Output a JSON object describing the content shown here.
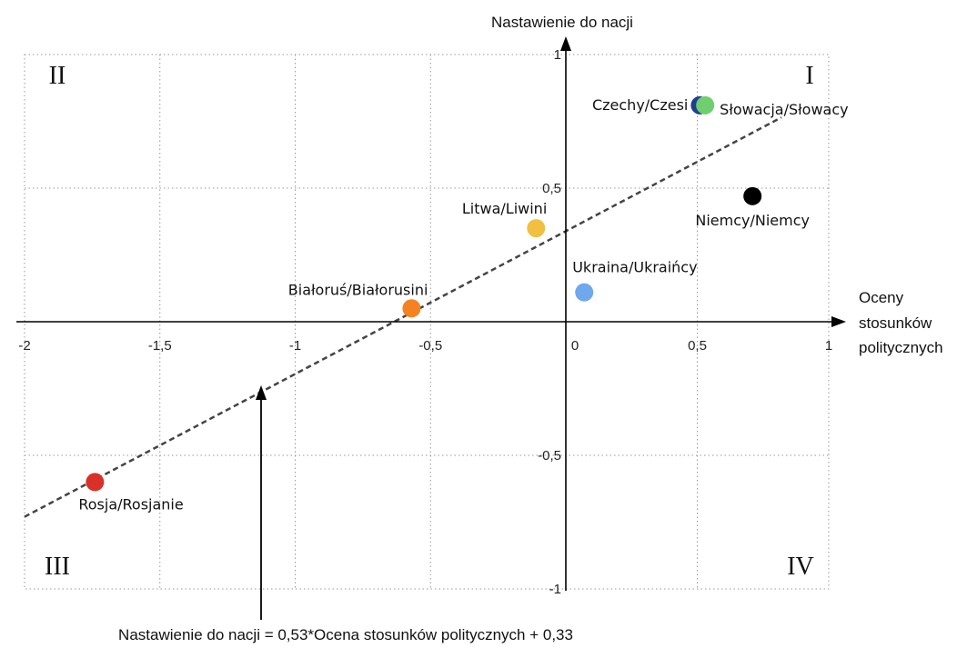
{
  "chart_data": {
    "type": "scatter",
    "title": "",
    "xlabel": [
      "Oceny",
      "stosunków",
      "politycznych"
    ],
    "ylabel": "Nastawienie do nacji",
    "xlim": [
      -2,
      1
    ],
    "ylim": [
      -1,
      1
    ],
    "grid": true,
    "x_ticks": [
      {
        "value": -2,
        "label": "-2"
      },
      {
        "value": -1.5,
        "label": "-1,5"
      },
      {
        "value": -1,
        "label": "-1"
      },
      {
        "value": -0.5,
        "label": "-0,5"
      },
      {
        "value": 0,
        "label": "0"
      },
      {
        "value": 0.5,
        "label": "0,5"
      },
      {
        "value": 1,
        "label": "1"
      }
    ],
    "y_ticks": [
      {
        "value": 1,
        "label": "1"
      },
      {
        "value": 0.5,
        "label": "0,5"
      },
      {
        "value": -0.5,
        "label": "-0,5"
      },
      {
        "value": -1,
        "label": "-1"
      }
    ],
    "points": [
      {
        "label": "Czechy/Czesi",
        "x": 0.51,
        "y": 0.81,
        "color": "#1f3f8f",
        "label_side": "left"
      },
      {
        "label": "Słowacja/Słowacy",
        "x": 0.53,
        "y": 0.81,
        "color": "#6fcf6f",
        "label_side": "right-below"
      },
      {
        "label": "Niemcy/Niemcy",
        "x": 0.71,
        "y": 0.47,
        "color": "#000000",
        "label_side": "below"
      },
      {
        "label": "Litwa/Liwini",
        "x": -0.11,
        "y": 0.35,
        "color": "#f2c040",
        "label_side": "above-left"
      },
      {
        "label": "Ukraina/Ukraińcy",
        "x": 0.07,
        "y": 0.11,
        "color": "#6fa8ec",
        "label_side": "above-right"
      },
      {
        "label": "Białoruś/Białorusini",
        "x": -0.57,
        "y": 0.05,
        "color": "#f58220",
        "label_side": "above-left"
      },
      {
        "label": "Rosja/Rosjanie",
        "x": -1.74,
        "y": -0.6,
        "color": "#d9302a",
        "label_side": "below-right"
      }
    ],
    "regression": {
      "slope": 0.53,
      "intercept": 0.33,
      "x_range": [
        -2,
        0.82
      ]
    },
    "quadrants": {
      "I": "I",
      "II": "II",
      "III": "III",
      "IV": "IV"
    },
    "equation": "Nastawienie do nacji = 0,53*Ocena stosunków politycznych + 0,33"
  }
}
